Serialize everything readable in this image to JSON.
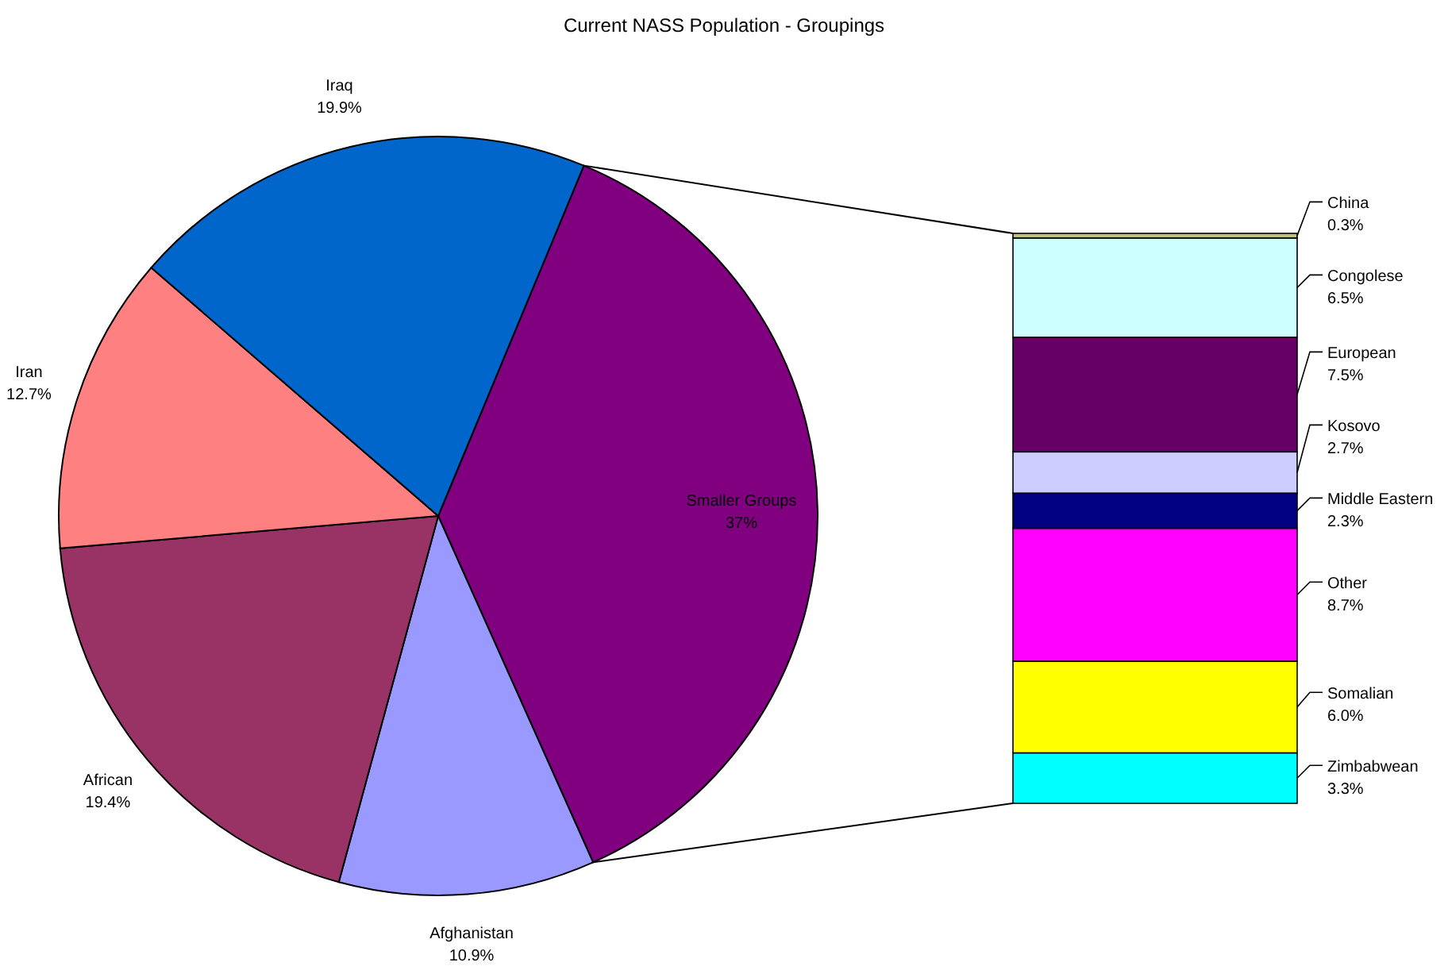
{
  "chart_data": [
    {
      "type": "pie",
      "title": "Current NASS Population - Groupings",
      "categories": [
        "Smaller Groups",
        "Afghanistan",
        "African",
        "Iran",
        "Iraq"
      ],
      "values": [
        37,
        10.9,
        19.4,
        12.7,
        19.9
      ],
      "value_labels": [
        "37%",
        "10.9%",
        "19.4%",
        "12.7%",
        "19.9%"
      ],
      "colors": [
        "#800080",
        "#9999ff",
        "#993366",
        "#ff8080",
        "#0066cc"
      ]
    },
    {
      "type": "bar",
      "stacked": true,
      "categories": [
        null
      ],
      "series": [
        {
          "name": "Zimbabwean",
          "color": "#00ffff",
          "values": [
            3.3
          ],
          "value_labels": [
            "3.3%"
          ]
        },
        {
          "name": "Somalian",
          "color": "#ffff00",
          "values": [
            6.0
          ],
          "value_labels": [
            "6.0%"
          ]
        },
        {
          "name": "Other",
          "color": "#ff00ff",
          "values": [
            8.7
          ],
          "value_labels": [
            "8.7%"
          ]
        },
        {
          "name": "Middle Eastern",
          "color": "#000080",
          "values": [
            2.3
          ],
          "value_labels": [
            "2.3%"
          ]
        },
        {
          "name": "Kosovo",
          "color": "#ccccff",
          "values": [
            2.7
          ],
          "value_labels": [
            "2.7%"
          ]
        },
        {
          "name": "European",
          "color": "#660066",
          "values": [
            7.5
          ],
          "value_labels": [
            "7.5%"
          ]
        },
        {
          "name": "Congolese",
          "color": "#ccffff",
          "values": [
            6.5
          ],
          "value_labels": [
            "6.5%"
          ]
        },
        {
          "name": "China",
          "color": "#c0c080",
          "values": [
            0.3
          ],
          "value_labels": [
            "0.3%"
          ]
        }
      ]
    }
  ]
}
